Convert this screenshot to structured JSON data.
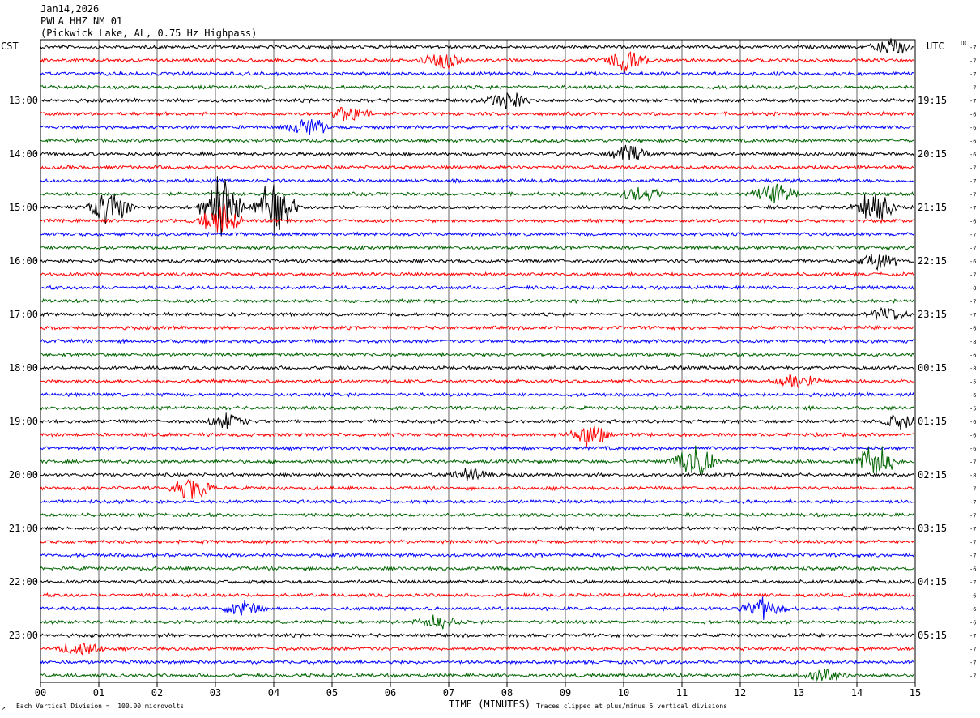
{
  "header": {
    "date": "Jan14,2026",
    "station": "PWLA HHZ NM 01",
    "location": "(Pickwick Lake, AL, 0.75 Hz Highpass)"
  },
  "left_axis_title": "CST",
  "right_axis_title": "UTC",
  "dc_label": "DC",
  "footer": {
    "scale_note": "Each Vertical Division =  100.00 microvolts",
    "xlabel": "TIME (MINUTES)",
    "clip_note": "Traces clipped at plus/minus 5 vertical divisions",
    "corner_mark": "↗"
  },
  "colors": {
    "trace_cycle": [
      "#000000",
      "#ff0000",
      "#0000ff",
      "#006400"
    ],
    "grid": "#000000"
  },
  "chart_data": {
    "type": "line",
    "xlabel": "TIME (MINUTES)",
    "xlim": [
      0,
      15
    ],
    "x_ticks": [
      "00",
      "01",
      "02",
      "03",
      "04",
      "05",
      "06",
      "07",
      "08",
      "09",
      "10",
      "11",
      "12",
      "13",
      "14",
      "15"
    ],
    "traces_per_hour": 4,
    "trace_minutes": 15,
    "trace_count": 48,
    "left_time_labels": [
      "13:00",
      "14:00",
      "15:00",
      "16:00",
      "17:00",
      "18:00",
      "19:00",
      "20:00",
      "21:00",
      "22:00",
      "23:00"
    ],
    "right_time_labels": [
      "19:15",
      "20:15",
      "21:15",
      "22:15",
      "23:15",
      "00:15",
      "01:15",
      "02:15",
      "03:15",
      "04:15",
      "05:15"
    ],
    "hour_label_start_trace": 4,
    "dc_offsets": [
      "-7",
      "-7",
      "-7",
      "-7",
      "-7",
      "-6",
      "-6",
      "-6",
      "-6",
      "-7",
      "-7",
      "-7",
      "-7",
      "-6",
      "-7",
      "-7",
      "-6",
      "-7",
      "-8",
      "-7",
      "-7",
      "-6",
      "-8",
      "-6",
      "-8",
      "-5",
      "-6",
      "-5",
      "-6",
      "-6",
      "-6",
      "-7",
      "-8",
      "-7",
      "-7",
      "-7",
      "-7",
      "-7",
      "-7",
      "-6",
      "-7",
      "-6",
      "-6",
      "-6",
      "-7",
      "-7",
      "-7",
      "-7"
    ],
    "events": [
      {
        "trace": 0,
        "minute": 14.6,
        "amp": 0.7
      },
      {
        "trace": 1,
        "minute": 6.9,
        "amp": 0.6
      },
      {
        "trace": 1,
        "minute": 10.05,
        "amp": 0.9
      },
      {
        "trace": 4,
        "minute": 8.0,
        "amp": 0.7
      },
      {
        "trace": 5,
        "minute": 5.3,
        "amp": 0.7
      },
      {
        "trace": 6,
        "minute": 4.6,
        "amp": 0.7
      },
      {
        "trace": 8,
        "minute": 10.1,
        "amp": 0.6
      },
      {
        "trace": 11,
        "minute": 10.3,
        "amp": 0.6
      },
      {
        "trace": 11,
        "minute": 12.6,
        "amp": 0.8
      },
      {
        "trace": 12,
        "minute": 1.2,
        "amp": 1.6
      },
      {
        "trace": 12,
        "minute": 3.1,
        "amp": 2.5
      },
      {
        "trace": 12,
        "minute": 4.0,
        "amp": 2.0
      },
      {
        "trace": 12,
        "minute": 14.3,
        "amp": 1.2
      },
      {
        "trace": 13,
        "minute": 3.1,
        "amp": 1.2
      },
      {
        "trace": 16,
        "minute": 14.4,
        "amp": 0.6
      },
      {
        "trace": 20,
        "minute": 14.5,
        "amp": 0.6
      },
      {
        "trace": 25,
        "minute": 13.0,
        "amp": 0.6
      },
      {
        "trace": 28,
        "minute": 3.2,
        "amp": 0.6
      },
      {
        "trace": 28,
        "minute": 14.8,
        "amp": 0.7
      },
      {
        "trace": 29,
        "minute": 9.4,
        "amp": 0.9
      },
      {
        "trace": 31,
        "minute": 11.2,
        "amp": 1.5
      },
      {
        "trace": 31,
        "minute": 14.3,
        "amp": 1.4
      },
      {
        "trace": 32,
        "minute": 7.4,
        "amp": 0.6
      },
      {
        "trace": 33,
        "minute": 2.6,
        "amp": 0.9
      },
      {
        "trace": 42,
        "minute": 3.5,
        "amp": 0.6
      },
      {
        "trace": 42,
        "minute": 12.4,
        "amp": 0.8
      },
      {
        "trace": 43,
        "minute": 6.8,
        "amp": 0.5
      },
      {
        "trace": 45,
        "minute": 0.7,
        "amp": 0.6
      },
      {
        "trace": 47,
        "minute": 13.5,
        "amp": 0.6
      }
    ]
  }
}
